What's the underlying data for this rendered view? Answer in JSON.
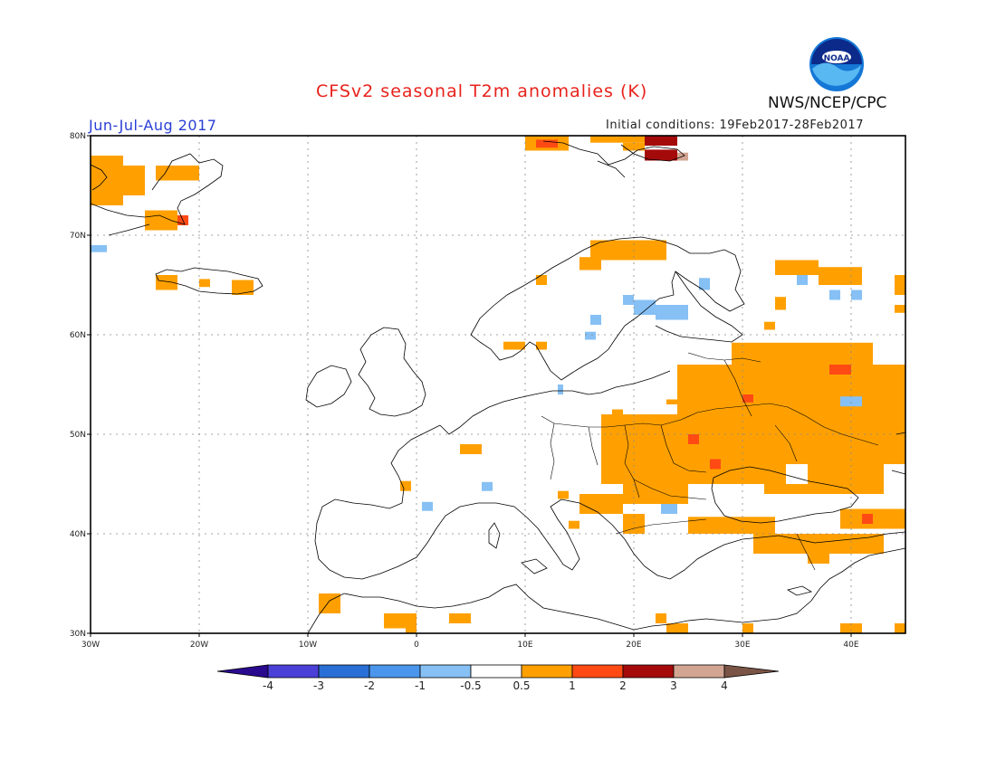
{
  "title": "CFSv2 seasonal T2m anomalies (K)",
  "period": "Jun-Jul-Aug 2017",
  "initial_conditions": "Initial conditions: 19Feb2017-28Feb2017",
  "organization": "NWS/NCEP/CPC",
  "logo_text": "NOAA",
  "map": {
    "lon_range": [
      -30,
      45
    ],
    "lat_range": [
      30,
      80
    ],
    "lon_ticks": [
      {
        "v": -30,
        "label": "30W"
      },
      {
        "v": -20,
        "label": "20W"
      },
      {
        "v": -10,
        "label": "10W"
      },
      {
        "v": 0,
        "label": "0"
      },
      {
        "v": 10,
        "label": "10E"
      },
      {
        "v": 20,
        "label": "20E"
      },
      {
        "v": 30,
        "label": "30E"
      },
      {
        "v": 40,
        "label": "40E"
      }
    ],
    "lat_ticks": [
      {
        "v": 30,
        "label": "30N"
      },
      {
        "v": 40,
        "label": "40N"
      },
      {
        "v": 50,
        "label": "50N"
      },
      {
        "v": 60,
        "label": "60N"
      },
      {
        "v": 70,
        "label": "70N"
      },
      {
        "v": 80,
        "label": "80N"
      }
    ],
    "grid": true
  },
  "anomaly_cells": [
    {
      "lon": [
        -30,
        -27
      ],
      "lat": [
        73,
        78
      ],
      "cat": "warm1"
    },
    {
      "lon": [
        -27,
        -25
      ],
      "lat": [
        74,
        77
      ],
      "cat": "warm1"
    },
    {
      "lon": [
        -24,
        -20
      ],
      "lat": [
        75.5,
        77
      ],
      "cat": "warm1"
    },
    {
      "lon": [
        -25,
        -22
      ],
      "lat": [
        70.5,
        72.5
      ],
      "cat": "warm1"
    },
    {
      "lon": [
        -22,
        -21
      ],
      "lat": [
        71,
        72
      ],
      "cat": "warm2"
    },
    {
      "lon": [
        -30,
        -28.5
      ],
      "lat": [
        68.3,
        69
      ],
      "cat": "cool1"
    },
    {
      "lon": [
        -24,
        -22
      ],
      "lat": [
        64.5,
        66
      ],
      "cat": "warm1"
    },
    {
      "lon": [
        -20,
        -19
      ],
      "lat": [
        64.8,
        65.6
      ],
      "cat": "warm1"
    },
    {
      "lon": [
        -17,
        -15
      ],
      "lat": [
        64,
        65.5
      ],
      "cat": "warm1"
    },
    {
      "lon": [
        10,
        14
      ],
      "lat": [
        78.5,
        80
      ],
      "cat": "warm1"
    },
    {
      "lon": [
        11,
        13
      ],
      "lat": [
        78.8,
        79.6
      ],
      "cat": "warm2"
    },
    {
      "lon": [
        16,
        21
      ],
      "lat": [
        79.3,
        80
      ],
      "cat": "warm1"
    },
    {
      "lon": [
        21,
        24
      ],
      "lat": [
        79,
        80
      ],
      "cat": "warm3"
    },
    {
      "lon": [
        19,
        21
      ],
      "lat": [
        78.5,
        79.3
      ],
      "cat": "warm1"
    },
    {
      "lon": [
        21,
        24
      ],
      "lat": [
        77.5,
        78.6
      ],
      "cat": "warm3"
    },
    {
      "lon": [
        24,
        25
      ],
      "lat": [
        77.5,
        78.3
      ],
      "cat": "warm4"
    },
    {
      "lon": [
        16,
        23
      ],
      "lat": [
        67.5,
        69.5
      ],
      "cat": "warm1"
    },
    {
      "lon": [
        15,
        17
      ],
      "lat": [
        66.5,
        67.8
      ],
      "cat": "warm1"
    },
    {
      "lon": [
        11,
        12
      ],
      "lat": [
        65,
        66
      ],
      "cat": "warm1"
    },
    {
      "lon": [
        26,
        27
      ],
      "lat": [
        64.5,
        65.7
      ],
      "cat": "cool1"
    },
    {
      "lon": [
        19,
        20
      ],
      "lat": [
        63,
        64
      ],
      "cat": "cool1"
    },
    {
      "lon": [
        20,
        22
      ],
      "lat": [
        62,
        63.5
      ],
      "cat": "cool1"
    },
    {
      "lon": [
        22,
        25
      ],
      "lat": [
        61.5,
        63
      ],
      "cat": "cool1"
    },
    {
      "lon": [
        16,
        17
      ],
      "lat": [
        61,
        62
      ],
      "cat": "cool1"
    },
    {
      "lon": [
        15.5,
        16.5
      ],
      "lat": [
        59.5,
        60.3
      ],
      "cat": "cool1"
    },
    {
      "lon": [
        8,
        10
      ],
      "lat": [
        58.5,
        59.3
      ],
      "cat": "warm1"
    },
    {
      "lon": [
        11,
        12
      ],
      "lat": [
        58.5,
        59.3
      ],
      "cat": "warm1"
    },
    {
      "lon": [
        13,
        13.5
      ],
      "lat": [
        54,
        55
      ],
      "cat": "cool1"
    },
    {
      "lon": [
        33,
        37
      ],
      "lat": [
        66,
        67.5
      ],
      "cat": "warm1"
    },
    {
      "lon": [
        37,
        41
      ],
      "lat": [
        65,
        66.8
      ],
      "cat": "warm1"
    },
    {
      "lon": [
        35,
        36
      ],
      "lat": [
        65,
        66
      ],
      "cat": "cool1"
    },
    {
      "lon": [
        33,
        34
      ],
      "lat": [
        62.5,
        63.8
      ],
      "cat": "warm1"
    },
    {
      "lon": [
        38,
        39
      ],
      "lat": [
        63.5,
        64.5
      ],
      "cat": "cool1"
    },
    {
      "lon": [
        40,
        41
      ],
      "lat": [
        63.5,
        64.5
      ],
      "cat": "cool1"
    },
    {
      "lon": [
        44,
        45
      ],
      "lat": [
        64,
        66
      ],
      "cat": "warm1"
    },
    {
      "lon": [
        44,
        45
      ],
      "lat": [
        62.2,
        63
      ],
      "cat": "warm1"
    },
    {
      "lon": [
        32,
        33
      ],
      "lat": [
        60.5,
        61.3
      ],
      "cat": "warm1"
    },
    {
      "lon": [
        29,
        42
      ],
      "lat": [
        56,
        59.2
      ],
      "cat": "warm1"
    },
    {
      "lon": [
        24,
        45
      ],
      "lat": [
        52,
        57
      ],
      "cat": "warm1"
    },
    {
      "lon": [
        39,
        41
      ],
      "lat": [
        52.8,
        53.8
      ],
      "cat": "cool1"
    },
    {
      "lon": [
        23,
        28
      ],
      "lat": [
        53,
        53.5
      ],
      "cat": "warm1"
    },
    {
      "lon": [
        30,
        31
      ],
      "lat": [
        53.2,
        54
      ],
      "cat": "warm2"
    },
    {
      "lon": [
        38,
        40
      ],
      "lat": [
        56,
        57
      ],
      "cat": "warm2"
    },
    {
      "lon": [
        17,
        45
      ],
      "lat": [
        47,
        52
      ],
      "cat": "warm1"
    },
    {
      "lon": [
        18,
        19
      ],
      "lat": [
        51.5,
        52.5
      ],
      "cat": "warm1"
    },
    {
      "lon": [
        25,
        26
      ],
      "lat": [
        49,
        50
      ],
      "cat": "warm2"
    },
    {
      "lon": [
        17,
        34
      ],
      "lat": [
        45,
        47
      ],
      "cat": "warm1"
    },
    {
      "lon": [
        27,
        28
      ],
      "lat": [
        46.5,
        47.5
      ],
      "cat": "warm2"
    },
    {
      "lon": [
        36,
        43
      ],
      "lat": [
        45,
        47
      ],
      "cat": "warm1"
    },
    {
      "lon": [
        32,
        43
      ],
      "lat": [
        44,
        45
      ],
      "cat": "warm1"
    },
    {
      "lon": [
        19,
        25
      ],
      "lat": [
        43,
        45
      ],
      "cat": "warm1"
    },
    {
      "lon": [
        15,
        19
      ],
      "lat": [
        42,
        44
      ],
      "cat": "warm1"
    },
    {
      "lon": [
        13,
        14
      ],
      "lat": [
        43.5,
        44.3
      ],
      "cat": "warm1"
    },
    {
      "lon": [
        22.5,
        24
      ],
      "lat": [
        42,
        43
      ],
      "cat": "cool1"
    },
    {
      "lon": [
        19,
        21
      ],
      "lat": [
        40,
        42
      ],
      "cat": "warm1"
    },
    {
      "lon": [
        25,
        33
      ],
      "lat": [
        40,
        41.7
      ],
      "cat": "warm1"
    },
    {
      "lon": [
        39,
        45
      ],
      "lat": [
        40.5,
        42.5
      ],
      "cat": "warm1"
    },
    {
      "lon": [
        41,
        42
      ],
      "lat": [
        41,
        42
      ],
      "cat": "warm2"
    },
    {
      "lon": [
        31,
        43
      ],
      "lat": [
        38,
        40
      ],
      "cat": "warm1"
    },
    {
      "lon": [
        36,
        38
      ],
      "lat": [
        37,
        38
      ],
      "cat": "warm1"
    },
    {
      "lon": [
        14,
        15
      ],
      "lat": [
        40.5,
        41.3
      ],
      "cat": "warm1"
    },
    {
      "lon": [
        4,
        6
      ],
      "lat": [
        48,
        49
      ],
      "cat": "warm1"
    },
    {
      "lon": [
        -1.5,
        -0.5
      ],
      "lat": [
        44.3,
        45.3
      ],
      "cat": "warm1"
    },
    {
      "lon": [
        0.5,
        1.5
      ],
      "lat": [
        42.3,
        43.2
      ],
      "cat": "cool1"
    },
    {
      "lon": [
        6,
        7
      ],
      "lat": [
        44.3,
        45.2
      ],
      "cat": "cool1"
    },
    {
      "lon": [
        -9,
        -7
      ],
      "lat": [
        32,
        34
      ],
      "cat": "warm1"
    },
    {
      "lon": [
        -3,
        0
      ],
      "lat": [
        30.5,
        32
      ],
      "cat": "warm1"
    },
    {
      "lon": [
        -1,
        0
      ],
      "lat": [
        30,
        31
      ],
      "cat": "warm1"
    },
    {
      "lon": [
        3,
        5
      ],
      "lat": [
        31,
        32
      ],
      "cat": "warm1"
    },
    {
      "lon": [
        22,
        23
      ],
      "lat": [
        31,
        32
      ],
      "cat": "warm1"
    },
    {
      "lon": [
        23,
        25
      ],
      "lat": [
        30,
        31
      ],
      "cat": "warm1"
    },
    {
      "lon": [
        30,
        31
      ],
      "lat": [
        30,
        31
      ],
      "cat": "warm1"
    },
    {
      "lon": [
        39,
        41
      ],
      "lat": [
        30,
        31
      ],
      "cat": "warm1"
    },
    {
      "lon": [
        44,
        45
      ],
      "lat": [
        30,
        31
      ],
      "cat": "warm1"
    }
  ],
  "colorbar": {
    "boundaries": [
      "-4",
      "-3",
      "-2",
      "-1",
      "-0.5",
      "0.5",
      "1",
      "2",
      "3",
      "4"
    ],
    "colors": [
      "#2a0a8e",
      "#4a3fd6",
      "#2a6fd6",
      "#4a96ec",
      "#86c0f4",
      "#ffffff",
      "#ffa000",
      "#ff4a14",
      "#a50a0a",
      "#d2a592",
      "#7a5446"
    ],
    "categories": {
      "cool1": "#86c0f4",
      "warm1": "#ffa000",
      "warm2": "#ff4a14",
      "warm3": "#a50a0a",
      "warm4": "#d2a592"
    }
  }
}
